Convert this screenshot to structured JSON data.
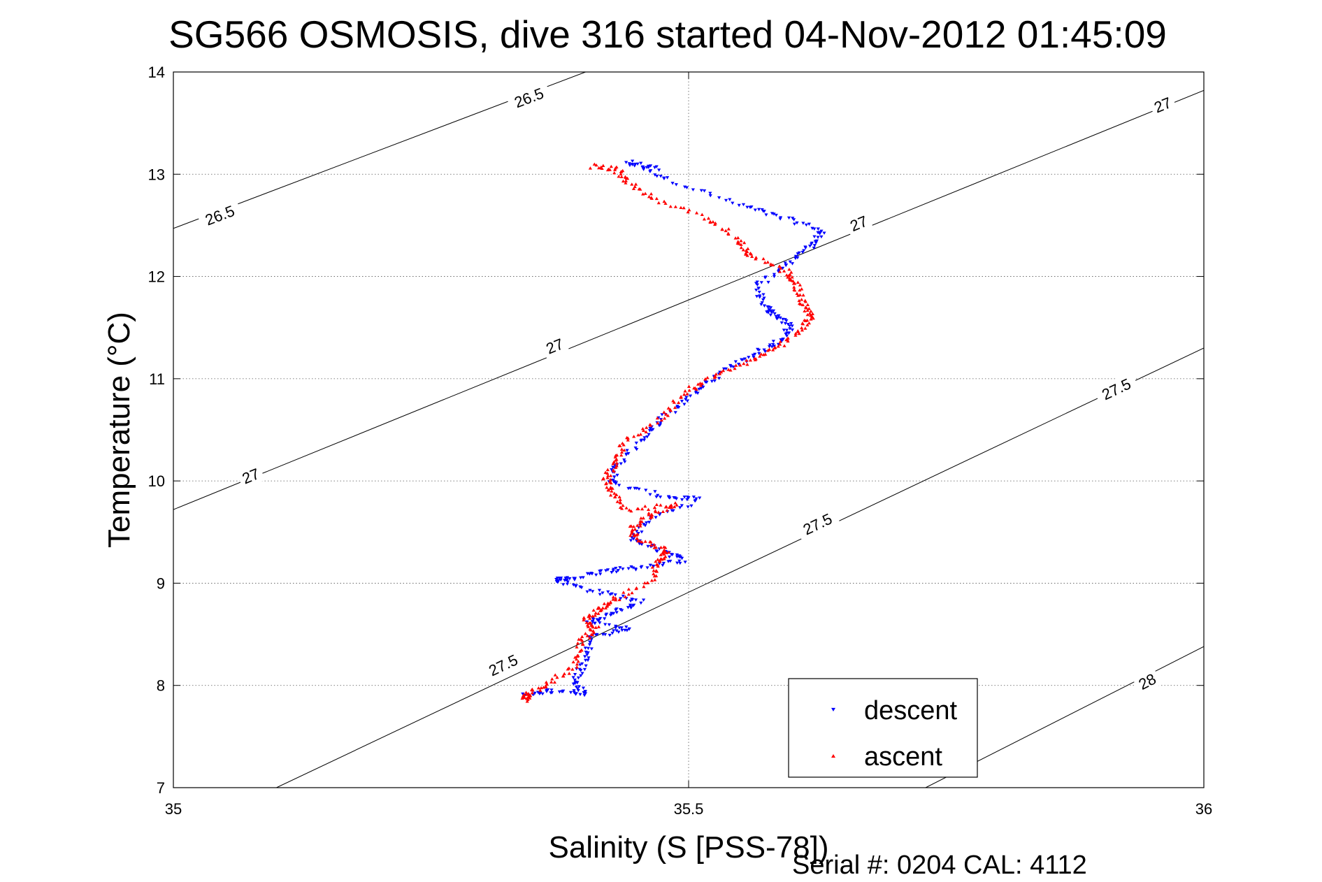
{
  "chart_data": {
    "type": "scatter",
    "title": "SG566 OSMOSIS, dive 316 started 04-Nov-2012 01:45:09",
    "xlabel": "Salinity (S [PSS-78])",
    "ylabel": "Temperature (°C)",
    "xlim": [
      35,
      36
    ],
    "ylim": [
      7,
      14
    ],
    "xticks": [
      35,
      35.5,
      36
    ],
    "xtick_labels": [
      "35",
      "35.5",
      "36"
    ],
    "yticks": [
      7,
      8,
      9,
      10,
      11,
      12,
      13,
      14
    ],
    "ytick_labels": [
      "7",
      "8",
      "9",
      "10",
      "11",
      "12",
      "13",
      "14"
    ],
    "grid": true,
    "footer": "Serial #: 0204  CAL: 4112",
    "legend": {
      "placement": "bottom-right",
      "entries": [
        "descent",
        "ascent"
      ]
    },
    "contours": [
      {
        "label": "26.5",
        "points": [
          [
            35.0,
            12.47
          ],
          [
            35.4,
            14.0
          ]
        ],
        "label_positions": [
          [
            35.045,
            12.6
          ],
          [
            35.345,
            13.75
          ]
        ]
      },
      {
        "label": "27",
        "points": [
          [
            35.0,
            9.72
          ],
          [
            36.0,
            13.82
          ]
        ],
        "label_positions": [
          [
            35.075,
            10.05
          ],
          [
            35.37,
            11.32
          ],
          [
            35.665,
            12.52
          ],
          [
            35.96,
            13.68
          ]
        ]
      },
      {
        "label": "27.5",
        "points": [
          [
            35.1,
            7.0
          ],
          [
            36.0,
            11.3
          ]
        ],
        "label_positions": [
          [
            35.32,
            8.2
          ],
          [
            35.625,
            9.58
          ],
          [
            35.915,
            10.9
          ]
        ]
      },
      {
        "label": "28",
        "points": [
          [
            35.73,
            7.0
          ],
          [
            36.0,
            8.38
          ]
        ],
        "label_positions": [
          [
            35.945,
            8.04
          ]
        ]
      }
    ],
    "series": [
      {
        "name": "descent",
        "color": "#0000ff",
        "marker": "triangle-down",
        "path": [
          [
            35.47,
            13.05
          ],
          [
            35.44,
            13.12
          ],
          [
            35.48,
            12.95
          ],
          [
            35.55,
            12.7
          ],
          [
            35.59,
            12.58
          ],
          [
            35.63,
            12.45
          ],
          [
            35.62,
            12.3
          ],
          [
            35.595,
            12.12
          ],
          [
            35.565,
            11.9
          ],
          [
            35.575,
            11.7
          ],
          [
            35.585,
            11.62
          ],
          [
            35.6,
            11.5
          ],
          [
            35.585,
            11.35
          ],
          [
            35.56,
            11.22
          ],
          [
            35.53,
            11.05
          ],
          [
            35.505,
            10.85
          ],
          [
            35.475,
            10.62
          ],
          [
            35.455,
            10.42
          ],
          [
            35.43,
            10.15
          ],
          [
            35.425,
            9.98
          ],
          [
            35.475,
            9.85
          ],
          [
            35.51,
            9.82
          ],
          [
            35.46,
            9.62
          ],
          [
            35.445,
            9.42
          ],
          [
            35.475,
            9.32
          ],
          [
            35.495,
            9.22
          ],
          [
            35.45,
            9.15
          ],
          [
            35.42,
            9.12
          ],
          [
            35.385,
            9.05
          ],
          [
            35.37,
            9.03
          ],
          [
            35.41,
            8.92
          ],
          [
            35.455,
            8.82
          ],
          [
            35.425,
            8.7
          ],
          [
            35.4,
            8.62
          ],
          [
            35.445,
            8.55
          ],
          [
            35.405,
            8.48
          ],
          [
            35.4,
            8.25
          ],
          [
            35.39,
            8.05
          ],
          [
            35.4,
            7.92
          ],
          [
            35.365,
            7.95
          ],
          [
            35.34,
            7.9
          ]
        ]
      },
      {
        "name": "ascent",
        "color": "#ff0000",
        "marker": "triangle-up",
        "path": [
          [
            35.34,
            7.86
          ],
          [
            35.345,
            7.92
          ],
          [
            35.365,
            8.02
          ],
          [
            35.39,
            8.2
          ],
          [
            35.395,
            8.42
          ],
          [
            35.41,
            8.55
          ],
          [
            35.4,
            8.65
          ],
          [
            35.415,
            8.75
          ],
          [
            35.43,
            8.85
          ],
          [
            35.465,
            9.05
          ],
          [
            35.47,
            9.22
          ],
          [
            35.48,
            9.32
          ],
          [
            35.45,
            9.42
          ],
          [
            35.445,
            9.55
          ],
          [
            35.465,
            9.68
          ],
          [
            35.49,
            9.77
          ],
          [
            35.44,
            9.72
          ],
          [
            35.425,
            9.88
          ],
          [
            35.42,
            10.02
          ],
          [
            35.43,
            10.2
          ],
          [
            35.44,
            10.4
          ],
          [
            35.475,
            10.62
          ],
          [
            35.495,
            10.85
          ],
          [
            35.52,
            11.0
          ],
          [
            35.555,
            11.15
          ],
          [
            35.585,
            11.3
          ],
          [
            35.61,
            11.48
          ],
          [
            35.62,
            11.62
          ],
          [
            35.61,
            11.75
          ],
          [
            35.605,
            11.92
          ],
          [
            35.595,
            12.05
          ],
          [
            35.56,
            12.2
          ],
          [
            35.55,
            12.35
          ],
          [
            35.52,
            12.55
          ],
          [
            35.47,
            12.75
          ],
          [
            35.44,
            12.92
          ],
          [
            35.43,
            13.05
          ],
          [
            35.405,
            13.08
          ]
        ]
      }
    ]
  }
}
